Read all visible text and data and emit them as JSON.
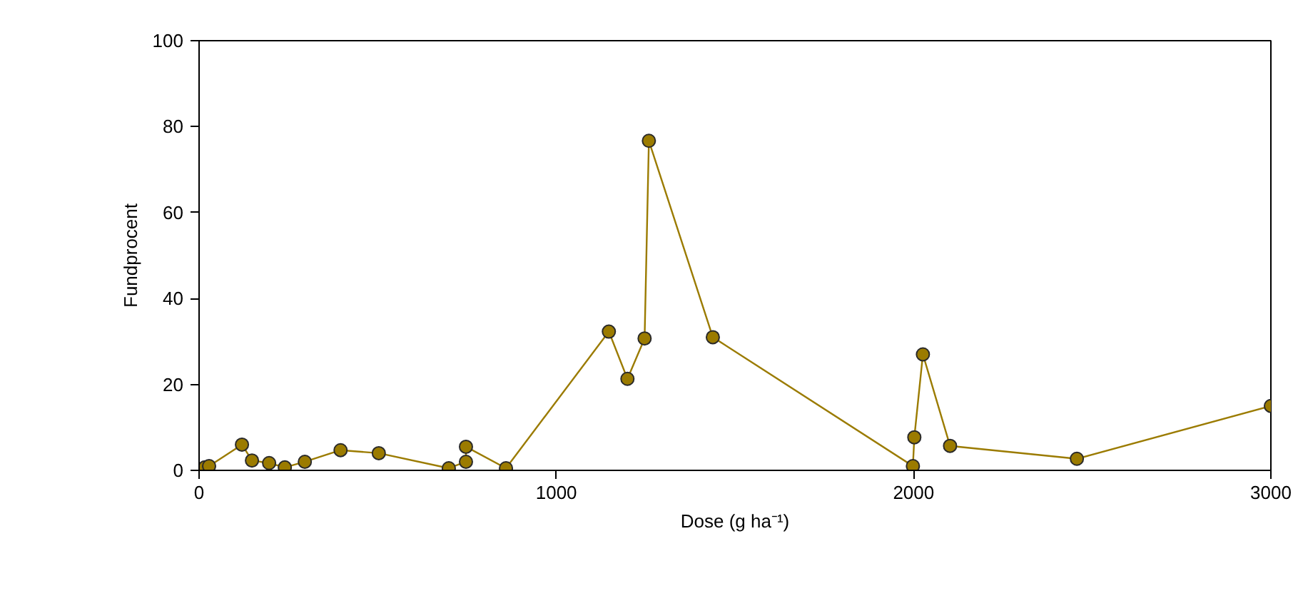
{
  "chart_data": {
    "type": "line",
    "xlabel": "Dose (g ha⁻¹)",
    "ylabel": "Fundprocent",
    "x": [
      16,
      28,
      120,
      148,
      196,
      240,
      296,
      396,
      503,
      699,
      747,
      747,
      859,
      1147,
      1199,
      1247,
      1259,
      1438,
      1998,
      2002,
      2026,
      2102,
      2457,
      3000
    ],
    "series": [
      {
        "color": "#9b7b00",
        "values": [
          0.7,
          1,
          6,
          2.3,
          1.7,
          0.7,
          2,
          4.7,
          4,
          0.5,
          2,
          5.5,
          0.5,
          32.3,
          21.3,
          30.7,
          76.7,
          31,
          1,
          7.7,
          27,
          5.7,
          2.7,
          15
        ]
      }
    ],
    "xlim": [
      0,
      3000
    ],
    "ylim": [
      0,
      100
    ],
    "xticks": [
      0,
      1000,
      2000,
      3000
    ],
    "yticks": [
      0,
      20,
      40,
      60,
      80,
      100
    ],
    "grid": false,
    "marker": "circle",
    "line_style": "solid"
  }
}
